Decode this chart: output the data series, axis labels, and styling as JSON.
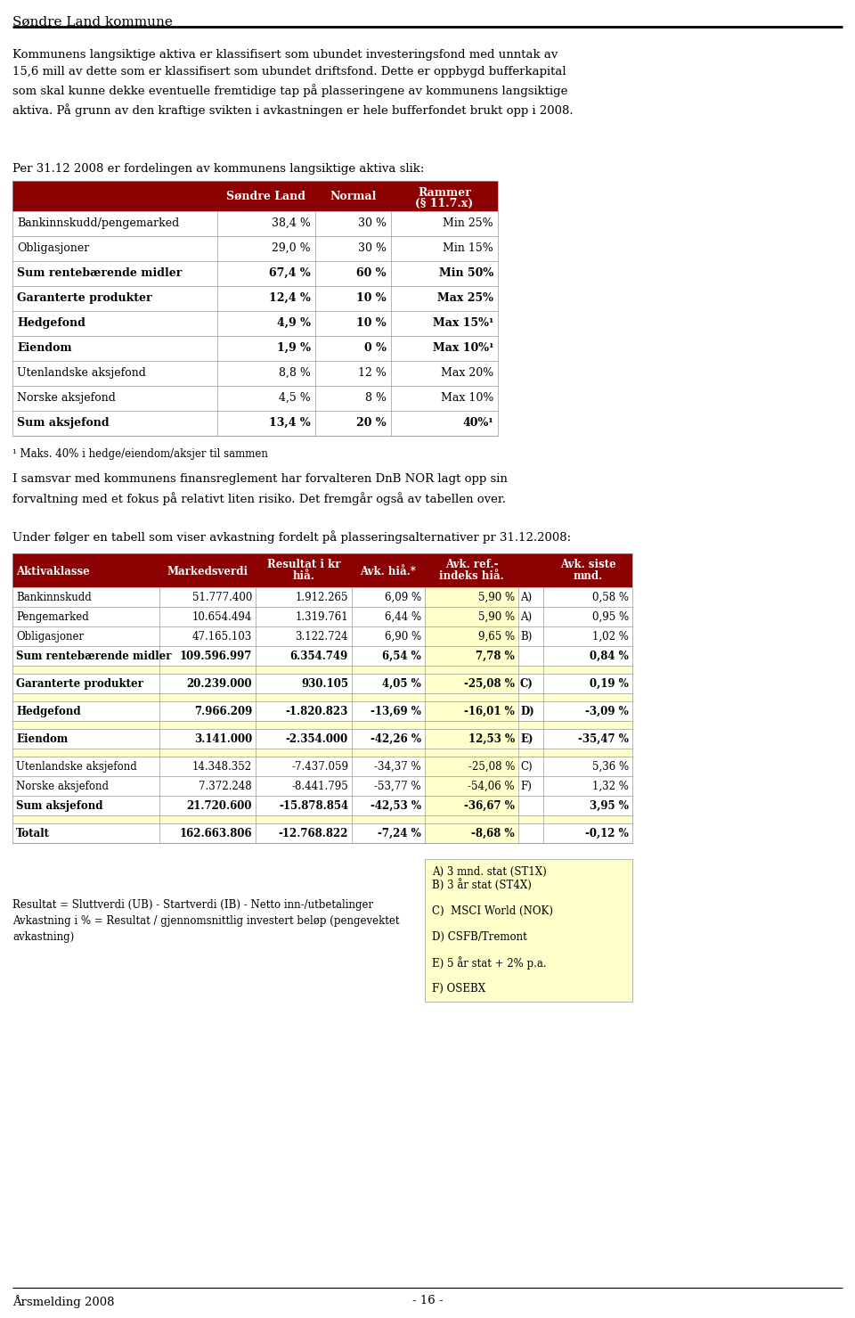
{
  "page_title": "Søndre Land kommune",
  "intro_text": "Kommunens langsiktige aktiva er klassifisert som ubundet investeringsfond med unntak av\n15,6 mill av dette som er klassifisert som ubundet driftsfond. Dette er oppbygd bufferkapital\nsom skal kunne dekke eventuelle fremtidige tap på plasseringene av kommunens langsiktige\naktiva. På grunn av den kraftige svikten i avkastningen er hele bufferfondet brukt opp i 2008.",
  "section1_heading": "Per 31.12 2008 er fordelingen av kommunens langsiktige aktiva slik:",
  "table1_header_bg": "#8B0000",
  "table1_col_headers": [
    "",
    "Søndre Land",
    "Normal",
    "Rammer\n(§ 11.7.x)"
  ],
  "table1_rows": [
    [
      "Bankinnskudd/pengemarked",
      "38,4 %",
      "30 %",
      "Min 25%",
      false
    ],
    [
      "Obligasjoner",
      "29,0 %",
      "30 %",
      "Min 15%",
      false
    ],
    [
      "Sum rentebærende midler",
      "67,4 %",
      "60 %",
      "Min 50%",
      true
    ],
    [
      "Garanterte produkter",
      "12,4 %",
      "10 %",
      "Max 25%",
      true
    ],
    [
      "Hedgefond",
      "4,9 %",
      "10 %",
      "Max 15%¹",
      true
    ],
    [
      "Eiendom",
      "1,9 %",
      "0 %",
      "Max 10%¹",
      true
    ],
    [
      "Utenlandske aksjefond",
      "8,8 %",
      "12 %",
      "Max 20%",
      false
    ],
    [
      "Norske aksjefond",
      "4,5 %",
      "8 %",
      "Max 10%",
      false
    ],
    [
      "Sum aksjefond",
      "13,4 %",
      "20 %",
      "40%¹",
      true
    ]
  ],
  "footnote1": "¹ Maks. 40% i hedge/eiendom/aksjer til sammen",
  "paragraph2": "I samsvar med kommunens finansreglement har forvalteren DnB NOR lagt opp sin\nforvaltning med et fokus på relativt liten risiko. Det fremgår også av tabellen over.",
  "paragraph3": "Under følger en tabell som viser avkastning fordelt på plasseringsalternativer pr 31.12.2008:",
  "table2_header_bg": "#8B0000",
  "table2_col_headers": [
    "Aktivaklasse",
    "Markedsverdi",
    "Resultat i kr\nhiå.",
    "Avk. hiå.*",
    "Avk. ref.-\nindeks hiå.",
    "",
    "Avk. siste\nmnd."
  ],
  "table2_rows": [
    [
      "Bankinnskudd",
      "51.777.400",
      "1.912.265",
      "6,09 %",
      "5,90 %",
      "A)",
      "0,58 %",
      false,
      false
    ],
    [
      "Pengemarked",
      "10.654.494",
      "1.319.761",
      "6,44 %",
      "5,90 %",
      "A)",
      "0,95 %",
      false,
      false
    ],
    [
      "Obligasjoner",
      "47.165.103",
      "3.122.724",
      "6,90 %",
      "9,65 %",
      "B)",
      "1,02 %",
      false,
      false
    ],
    [
      "Sum rentebærende midler",
      "109.596.997",
      "6.354.749",
      "6,54 %",
      "7,78 %",
      "",
      "0,84 %",
      true,
      false
    ],
    [
      "",
      "",
      "",
      "",
      "",
      "",
      "",
      false,
      true
    ],
    [
      "Garanterte produkter",
      "20.239.000",
      "930.105",
      "4,05 %",
      "-25,08 %",
      "C)",
      "0,19 %",
      true,
      false
    ],
    [
      "",
      "",
      "",
      "",
      "",
      "",
      "",
      false,
      true
    ],
    [
      "Hedgefond",
      "7.966.209",
      "-1.820.823",
      "-13,69 %",
      "-16,01 %",
      "D)",
      "-3,09 %",
      true,
      false
    ],
    [
      "",
      "",
      "",
      "",
      "",
      "",
      "",
      false,
      true
    ],
    [
      "Eiendom",
      "3.141.000",
      "-2.354.000",
      "-42,26 %",
      "12,53 %",
      "E)",
      "-35,47 %",
      true,
      false
    ],
    [
      "",
      "",
      "",
      "",
      "",
      "",
      "",
      false,
      true
    ],
    [
      "Utenlandske aksjefond",
      "14.348.352",
      "-7.437.059",
      "-34,37 %",
      "-25,08 %",
      "C)",
      "5,36 %",
      false,
      false
    ],
    [
      "Norske aksjefond",
      "7.372.248",
      "-8.441.795",
      "-53,77 %",
      "-54,06 %",
      "F)",
      "1,32 %",
      false,
      false
    ],
    [
      "Sum aksjefond",
      "21.720.600",
      "-15.878.854",
      "-42,53 %",
      "-36,67 %",
      "",
      "3,95 %",
      true,
      false
    ],
    [
      "",
      "",
      "",
      "",
      "",
      "",
      "",
      false,
      true
    ],
    [
      "Totalt",
      "162.663.806",
      "-12.768.822",
      "-7,24 %",
      "-8,68 %",
      "",
      "-0,12 %",
      true,
      false
    ]
  ],
  "note_left": "Resultat = Sluttverdi (UB) - Startverdi (IB) - Netto inn-/utbetalinger\nAvkastning i % = Resultat / gjennomsnittlig investert beløp (pengevektet\navkastning)",
  "note_right_lines": [
    "A) 3 mnd. stat (ST1X)",
    "B) 3 år stat (ST4X)",
    "",
    "C)  MSCI World (NOK)",
    "",
    "D) CSFB/Tremont",
    "",
    "E) 5 år stat + 2% p.a.",
    "",
    "F) OSEBX"
  ],
  "footer_left": "Årsmelding 2008",
  "footer_center": "- 16 -",
  "bg_color": "#FFFFFF",
  "highlight_yellow": "#FFFFCC",
  "dark_red": "#8B0000",
  "border_color": "#999999"
}
